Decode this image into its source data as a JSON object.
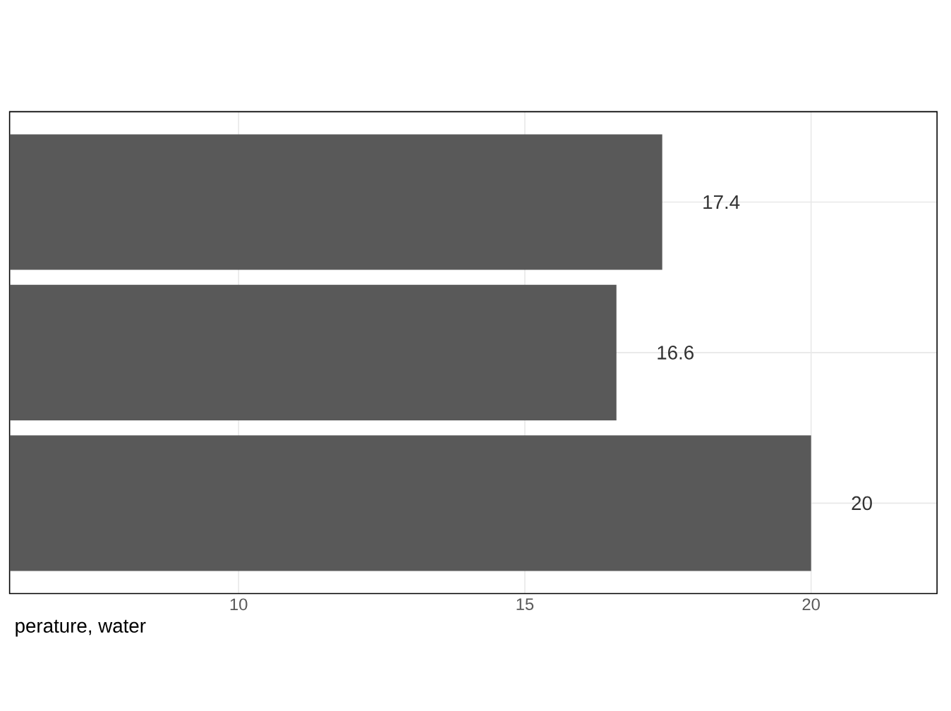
{
  "chart_data": {
    "type": "bar",
    "orientation": "horizontal",
    "categories": [
      null,
      null,
      null
    ],
    "values": [
      17.4,
      16.6,
      20
    ],
    "color": "#595959",
    "xlim": [
      6,
      22.2
    ],
    "xticks": [
      10,
      15,
      20
    ],
    "xlabel": "perature, water",
    "data_labels": true,
    "grid": true,
    "tick_labels": "x"
  }
}
